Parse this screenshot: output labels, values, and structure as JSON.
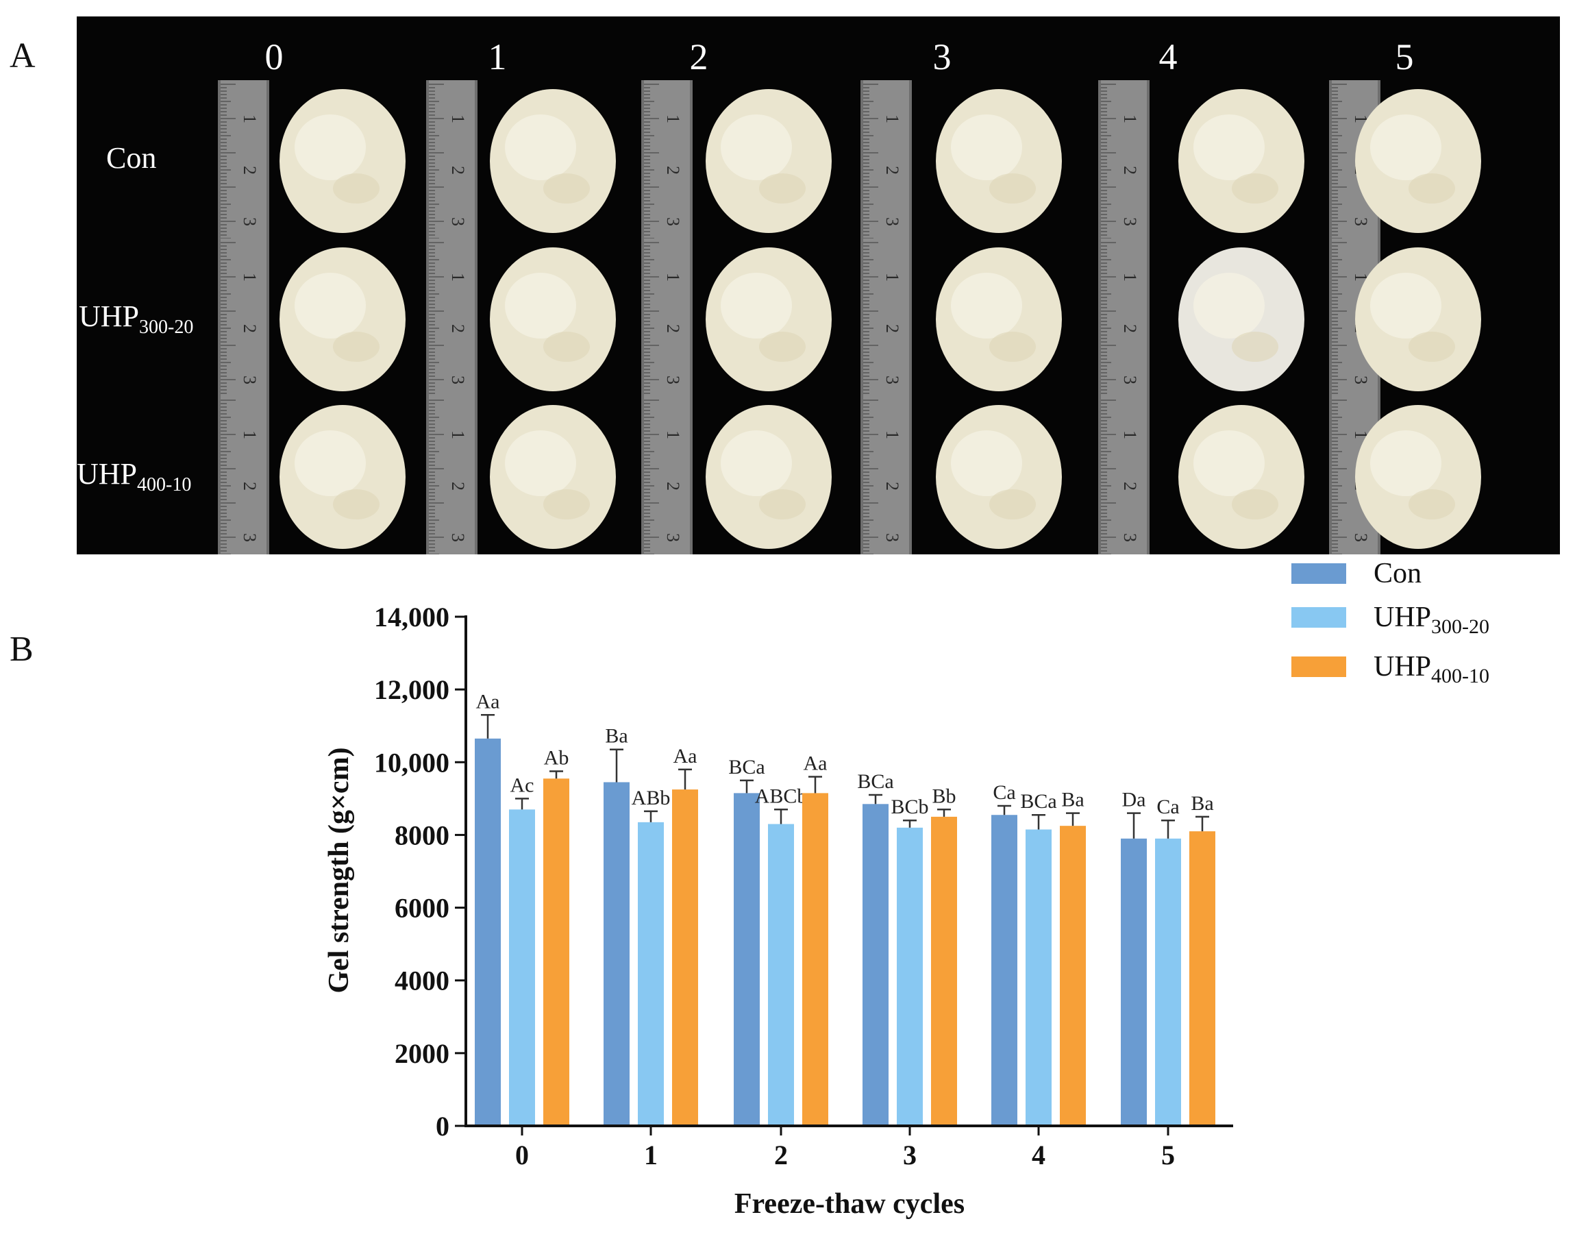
{
  "panels": {
    "a_label": "A",
    "b_label": "B"
  },
  "photo_grid": {
    "columns": [
      "0",
      "1",
      "2",
      "3",
      "4",
      "5"
    ],
    "rows": [
      {
        "main": "Con",
        "sub": ""
      },
      {
        "main": "UHP",
        "sub": "300-20"
      },
      {
        "main": "UHP",
        "sub": "400-10"
      }
    ],
    "ruler_ticks": [
      "1",
      "2",
      "3"
    ]
  },
  "colors": {
    "con": "#6a9bd1",
    "uhp300": "#88c8f2",
    "uhp400": "#f7a038",
    "photo_bg": "#050505",
    "sample": "#eae5cf"
  },
  "chart_data": {
    "type": "bar",
    "xlabel": "Freeze-thaw cycles",
    "ylabel": "Gel strength (g×cm)",
    "categories": [
      "0",
      "1",
      "2",
      "3",
      "4",
      "5"
    ],
    "ylim": [
      0,
      14000
    ],
    "yticks": [
      0,
      2000,
      4000,
      6000,
      8000,
      10000,
      12000,
      14000
    ],
    "ytick_labels": [
      "0",
      "2000",
      "4000",
      "6000",
      "8000",
      "10,000",
      "12,000",
      "14,000"
    ],
    "legend_position": "top-right",
    "series": [
      {
        "name": "Con",
        "name_sub": "",
        "color": "#6a9bd1",
        "values": [
          10650,
          9450,
          9150,
          8850,
          8550,
          7900
        ],
        "errors": [
          650,
          900,
          350,
          250,
          250,
          700
        ],
        "labels": [
          "Aa",
          "Ba",
          "BCa",
          "BCa",
          "Ca",
          "Da"
        ]
      },
      {
        "name": "UHP",
        "name_sub": "300-20",
        "color": "#88c8f2",
        "values": [
          8700,
          8350,
          8300,
          8200,
          8150,
          7900
        ],
        "errors": [
          300,
          300,
          400,
          200,
          400,
          500
        ],
        "labels": [
          "Ac",
          "ABb",
          "ABCb",
          "BCb",
          "BCa",
          "Ca"
        ]
      },
      {
        "name": "UHP",
        "name_sub": "400-10",
        "color": "#f7a038",
        "values": [
          9550,
          9250,
          9150,
          8500,
          8250,
          8100
        ],
        "errors": [
          200,
          550,
          450,
          200,
          350,
          400
        ],
        "labels": [
          "Ab",
          "Aa",
          "Aa",
          "Bb",
          "Ba",
          "Ba"
        ]
      }
    ]
  }
}
